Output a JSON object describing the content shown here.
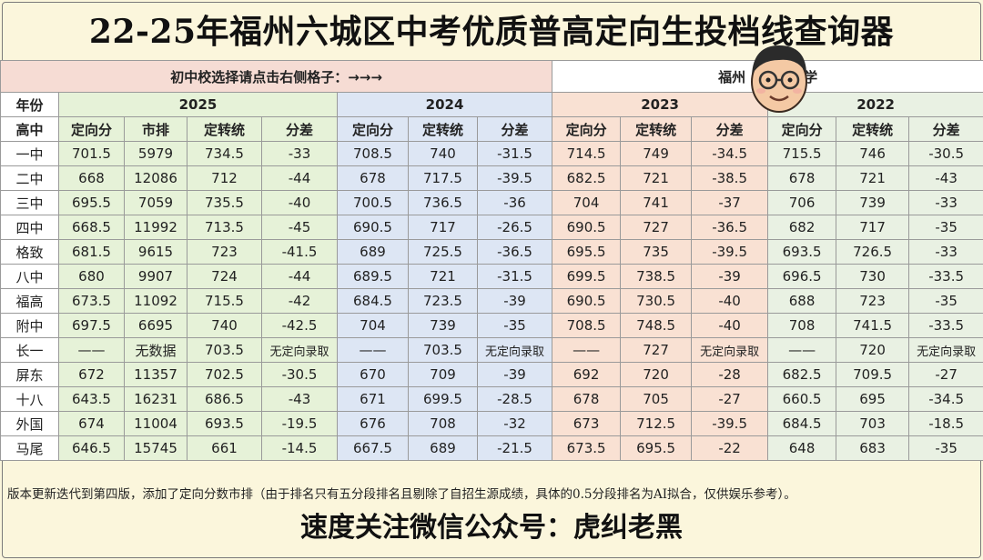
{
  "title": "22-25年福州六城区中考优质普高定向生投档线查询器",
  "select_prompt": "初中校选择请点击右侧格子：→→→",
  "school_name_visible_left": "福州",
  "school_name_visible_right": "学",
  "header_year_label": "年份",
  "header_school_label": "高中",
  "years": [
    "2025",
    "2024",
    "2023",
    "2022"
  ],
  "cols_2025": [
    "定向分",
    "市排",
    "定转统",
    "分差"
  ],
  "cols_other": [
    "定向分",
    "定转统",
    "分差"
  ],
  "rows": [
    {
      "school": "一中",
      "y25": [
        "701.5",
        "5979",
        "734.5",
        "-33"
      ],
      "y24": [
        "708.5",
        "740",
        "-31.5"
      ],
      "y23": [
        "714.5",
        "749",
        "-34.5"
      ],
      "y22": [
        "715.5",
        "746",
        "-30.5"
      ]
    },
    {
      "school": "二中",
      "y25": [
        "668",
        "12086",
        "712",
        "-44"
      ],
      "y24": [
        "678",
        "717.5",
        "-39.5"
      ],
      "y23": [
        "682.5",
        "721",
        "-38.5"
      ],
      "y22": [
        "678",
        "721",
        "-43"
      ]
    },
    {
      "school": "三中",
      "y25": [
        "695.5",
        "7059",
        "735.5",
        "-40"
      ],
      "y24": [
        "700.5",
        "736.5",
        "-36"
      ],
      "y23": [
        "704",
        "741",
        "-37"
      ],
      "y22": [
        "706",
        "739",
        "-33"
      ]
    },
    {
      "school": "四中",
      "y25": [
        "668.5",
        "11992",
        "713.5",
        "-45"
      ],
      "y24": [
        "690.5",
        "717",
        "-26.5"
      ],
      "y23": [
        "690.5",
        "727",
        "-36.5"
      ],
      "y22": [
        "682",
        "717",
        "-35"
      ]
    },
    {
      "school": "格致",
      "y25": [
        "681.5",
        "9615",
        "723",
        "-41.5"
      ],
      "y24": [
        "689",
        "725.5",
        "-36.5"
      ],
      "y23": [
        "695.5",
        "735",
        "-39.5"
      ],
      "y22": [
        "693.5",
        "726.5",
        "-33"
      ]
    },
    {
      "school": "八中",
      "y25": [
        "680",
        "9907",
        "724",
        "-44"
      ],
      "y24": [
        "689.5",
        "721",
        "-31.5"
      ],
      "y23": [
        "699.5",
        "738.5",
        "-39"
      ],
      "y22": [
        "696.5",
        "730",
        "-33.5"
      ]
    },
    {
      "school": "福高",
      "y25": [
        "673.5",
        "11092",
        "715.5",
        "-42"
      ],
      "y24": [
        "684.5",
        "723.5",
        "-39"
      ],
      "y23": [
        "690.5",
        "730.5",
        "-40"
      ],
      "y22": [
        "688",
        "723",
        "-35"
      ]
    },
    {
      "school": "附中",
      "y25": [
        "697.5",
        "6695",
        "740",
        "-42.5"
      ],
      "y24": [
        "704",
        "739",
        "-35"
      ],
      "y23": [
        "708.5",
        "748.5",
        "-40"
      ],
      "y22": [
        "708",
        "741.5",
        "-33.5"
      ]
    },
    {
      "school": "长一",
      "y25": [
        "——",
        "无数据",
        "703.5",
        "无定向录取"
      ],
      "y24": [
        "——",
        "703.5",
        "无定向录取"
      ],
      "y23": [
        "——",
        "727",
        "无定向录取"
      ],
      "y22": [
        "——",
        "720",
        "无定向录取"
      ]
    },
    {
      "school": "屏东",
      "y25": [
        "672",
        "11357",
        "702.5",
        "-30.5"
      ],
      "y24": [
        "670",
        "709",
        "-39"
      ],
      "y23": [
        "692",
        "720",
        "-28"
      ],
      "y22": [
        "682.5",
        "709.5",
        "-27"
      ]
    },
    {
      "school": "十八",
      "y25": [
        "643.5",
        "16231",
        "686.5",
        "-43"
      ],
      "y24": [
        "671",
        "699.5",
        "-28.5"
      ],
      "y23": [
        "678",
        "705",
        "-27"
      ],
      "y22": [
        "660.5",
        "695",
        "-34.5"
      ]
    },
    {
      "school": "外国",
      "y25": [
        "674",
        "11004",
        "693.5",
        "-19.5"
      ],
      "y24": [
        "676",
        "708",
        "-32"
      ],
      "y23": [
        "673",
        "712.5",
        "-39.5"
      ],
      "y22": [
        "684.5",
        "703",
        "-18.5"
      ]
    },
    {
      "school": "马尾",
      "y25": [
        "646.5",
        "15745",
        "661",
        "-14.5"
      ],
      "y24": [
        "667.5",
        "689",
        "-21.5"
      ],
      "y23": [
        "673.5",
        "695.5",
        "-22"
      ],
      "y22": [
        "648",
        "683",
        "-35"
      ]
    }
  ],
  "footnote": "版本更新迭代到第四版，添加了定向分数市排（由于排名只有五分段排名且剔除了自招生源成绩，具体的0.5分段排名为AI拟合，仅供娱乐参考）。",
  "follow_text": "速度关注微信公众号：虎纠老黑",
  "colors": {
    "bg": "#fbf6dc",
    "y2025": "#e6f2d8",
    "y2024": "#dde6f4",
    "y2023": "#f9e1d3",
    "y2022": "#e9f1e3",
    "select_bar": "#f6dcd4"
  },
  "icons": {
    "avatar": "cartoon-face-avatar"
  }
}
